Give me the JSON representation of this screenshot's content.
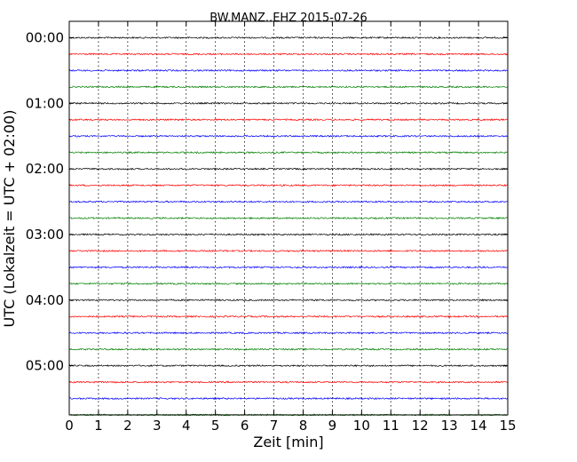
{
  "chart_data": {
    "type": "line",
    "title": "BW.MANZ..EHZ 2015-07-26",
    "xlabel": "Zeit  [min]",
    "ylabel": "UTC (Lokalzeit = UTC + 02:00)",
    "xlim": [
      0,
      15
    ],
    "x_ticks": [
      "0",
      "1",
      "2",
      "3",
      "4",
      "5",
      "6",
      "7",
      "8",
      "9",
      "10",
      "11",
      "12",
      "13",
      "14",
      "15"
    ],
    "y_ticks": [
      "00:00",
      "01:00",
      "02:00",
      "03:00",
      "04:00",
      "05:00"
    ],
    "ylim_minutes": [
      -15,
      345
    ],
    "grid": "x-dotted",
    "trace_interval_minutes": 15,
    "trace_count": 24,
    "trace_colors": [
      "#000000",
      "#ff0000",
      "#0000ff",
      "#008000"
    ]
  }
}
